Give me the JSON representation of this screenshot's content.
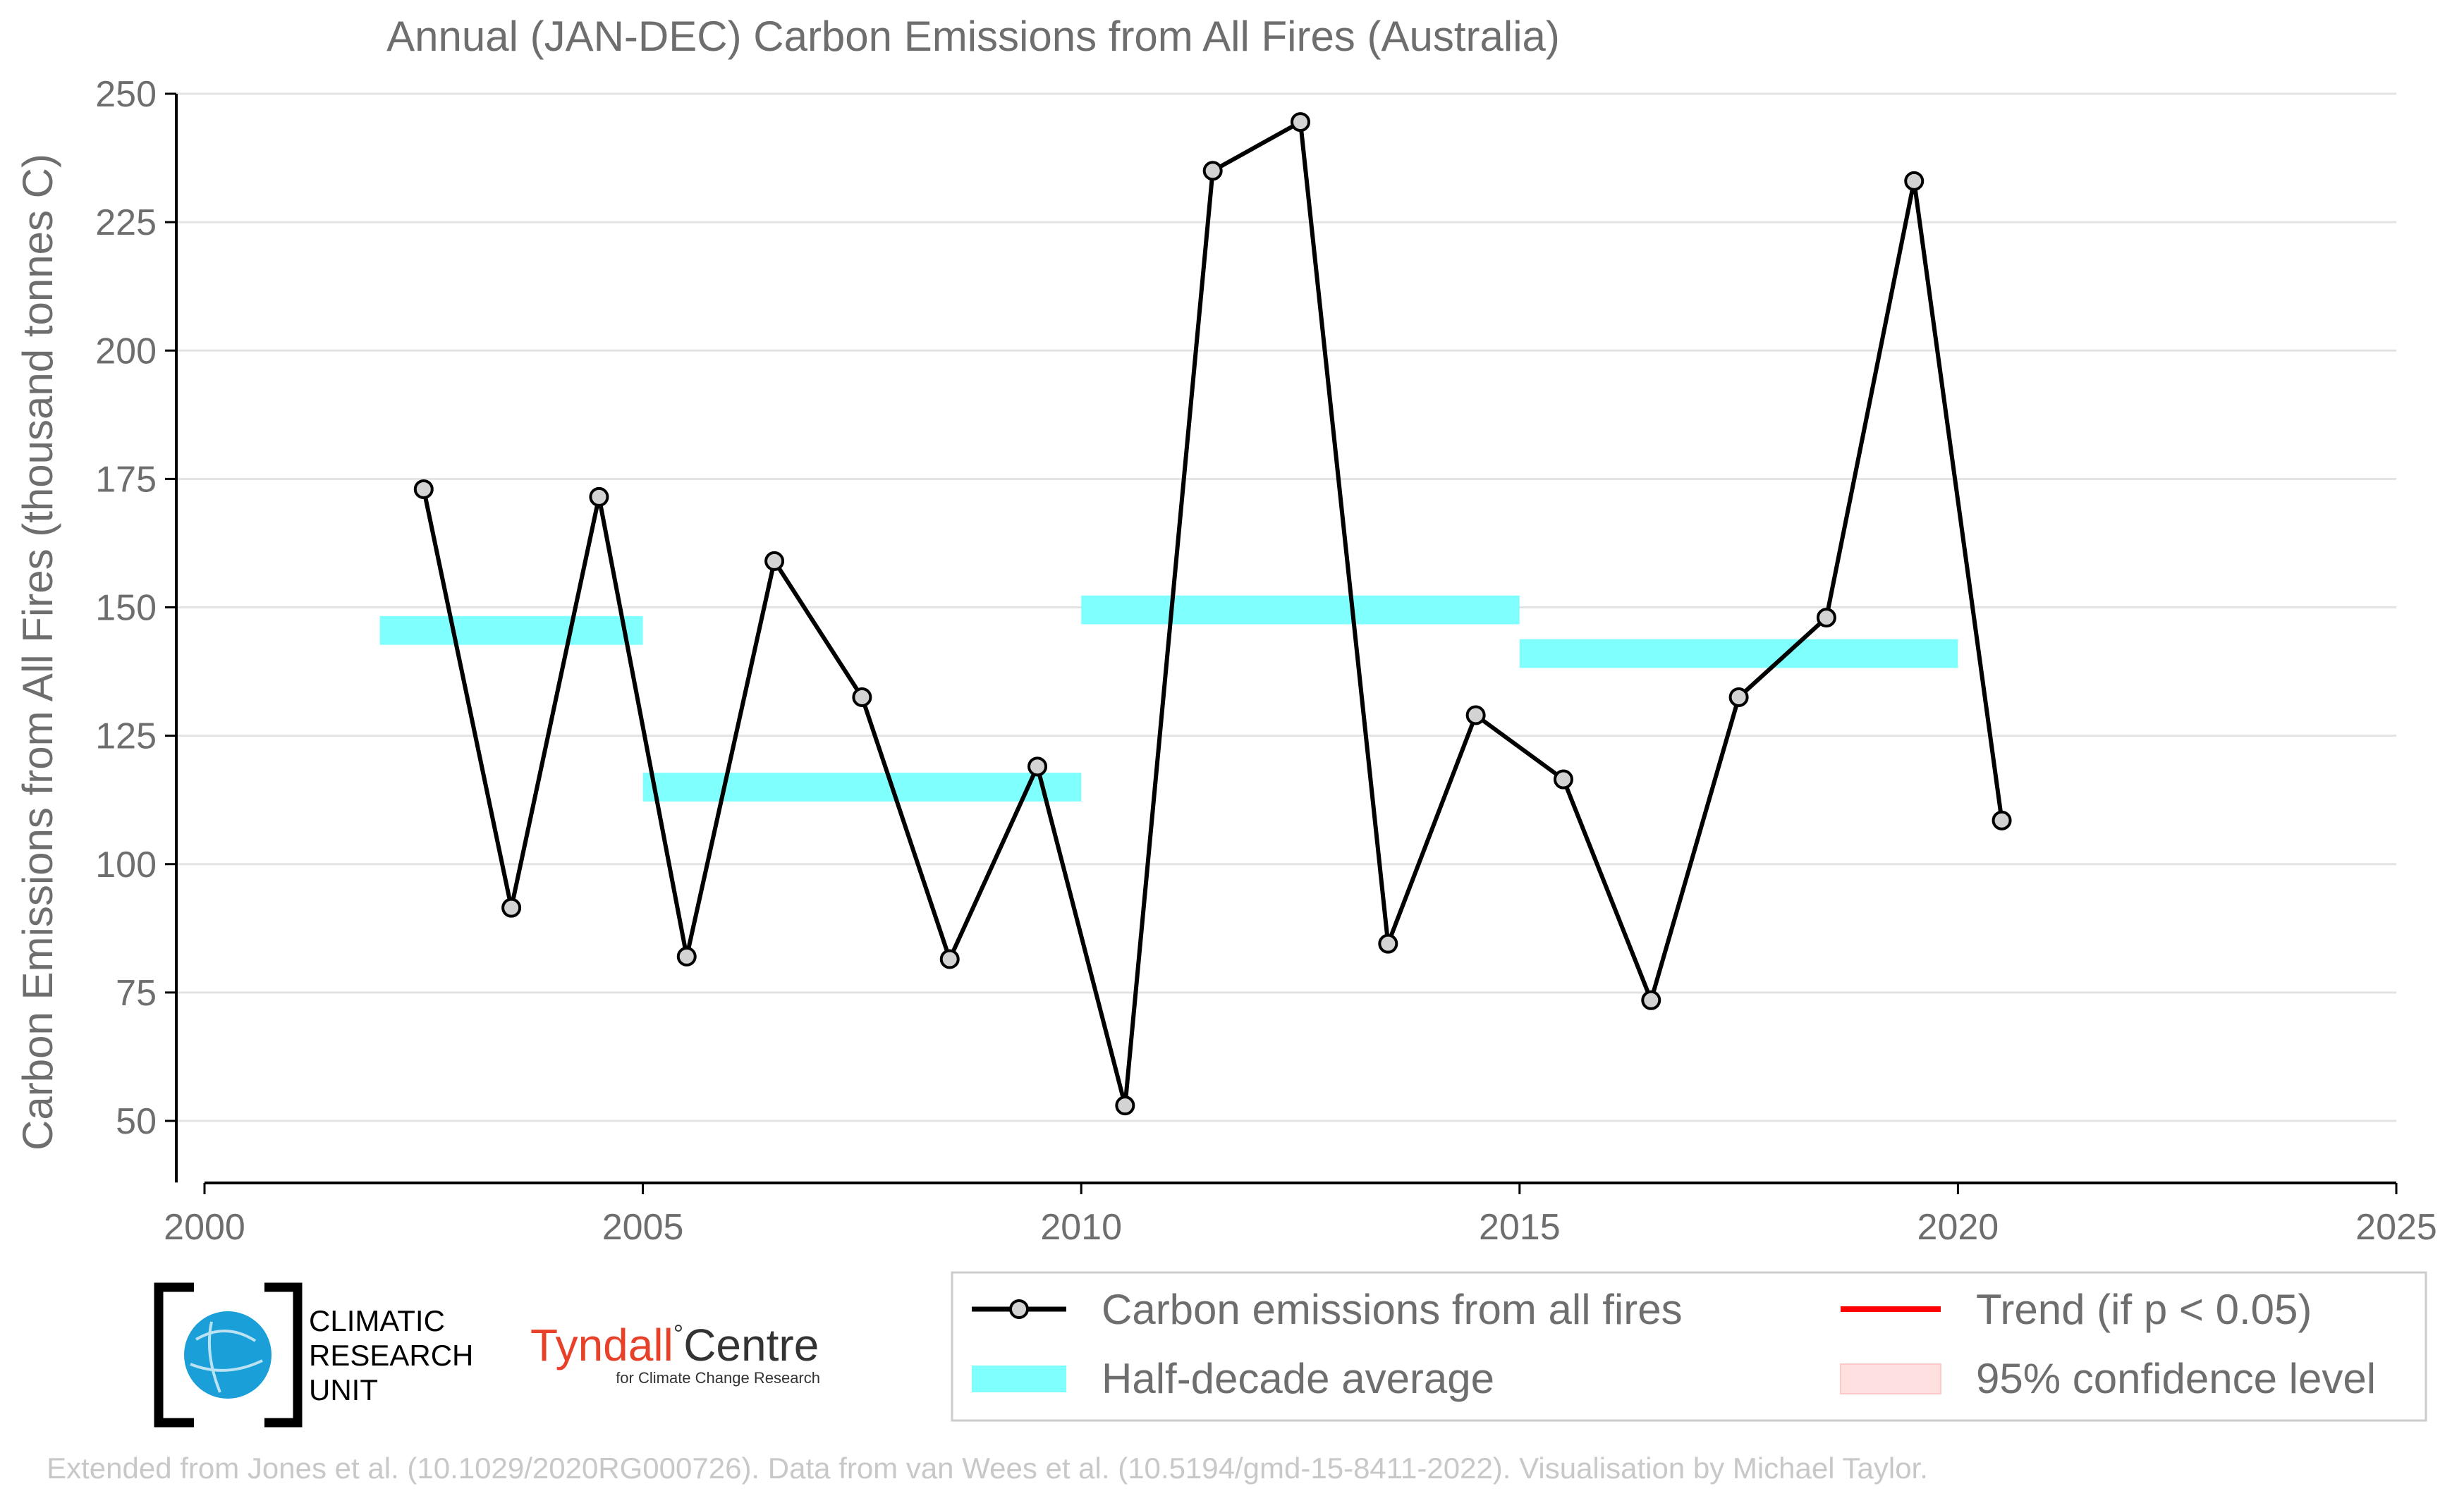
{
  "chart_data": {
    "type": "line",
    "title": "Annual (JAN-DEC) Carbon Emissions from All Fires (Australia)",
    "xlabel": "",
    "ylabel": "Carbon Emissions from All Fires (thousand tonnes C)",
    "xlim": [
      2000,
      2025
    ],
    "ylim": [
      38,
      250
    ],
    "x_ticks": [
      2000,
      2005,
      2010,
      2015,
      2020,
      2025
    ],
    "y_ticks": [
      50,
      75,
      100,
      125,
      150,
      175,
      200,
      225,
      250
    ],
    "grid": "horizontal",
    "legend_position": "bottom-right",
    "series": [
      {
        "name": "Carbon emissions from all fires",
        "color": "#000000",
        "x": [
          2002.5,
          2003.5,
          2004.5,
          2005.5,
          2006.5,
          2007.5,
          2008.5,
          2009.5,
          2010.5,
          2011.5,
          2012.5,
          2013.5,
          2014.5,
          2015.5,
          2016.5,
          2017.5,
          2018.5,
          2019.5,
          2020.5
        ],
        "values": [
          173,
          91.5,
          171.5,
          82,
          159,
          132.5,
          81.5,
          119,
          53,
          235,
          244.5,
          84.5,
          129,
          116.5,
          73.5,
          132.5,
          148,
          233,
          108.5
        ]
      },
      {
        "name": "Half-decade average",
        "color": "#80ffff",
        "segments": [
          {
            "x_start": 2002,
            "x_end": 2005,
            "value": 145.5
          },
          {
            "x_start": 2005,
            "x_end": 2010,
            "value": 115
          },
          {
            "x_start": 2010,
            "x_end": 2015,
            "value": 149.5
          },
          {
            "x_start": 2015,
            "x_end": 2020,
            "value": 141
          }
        ]
      }
    ],
    "legend": [
      {
        "label": "Carbon emissions from all fires",
        "kind": "line-marker",
        "color": "#000000"
      },
      {
        "label": "Trend (if p < 0.05)",
        "kind": "line",
        "color": "#ff0000"
      },
      {
        "label": "Half-decade average",
        "kind": "band",
        "color": "#80ffff"
      },
      {
        "label": "95% confidence level",
        "kind": "patch",
        "color": "#ffe0e0"
      }
    ]
  },
  "logos": {
    "cru": {
      "line1": "CLIMATIC",
      "line2": "RESEARCH",
      "line3": "UNIT",
      "color": "#1a9fd8"
    },
    "tyndall": {
      "word1": "Tyndall",
      "degree": "°",
      "word2": "Centre",
      "subtitle": "for Climate Change Research",
      "color": "#e8412a"
    }
  },
  "footer": "Extended from Jones et al. (10.1029/2020RG000726). Data from van Wees et al. (10.5194/gmd-15-8411-2022). Visualisation by Michael Taylor."
}
